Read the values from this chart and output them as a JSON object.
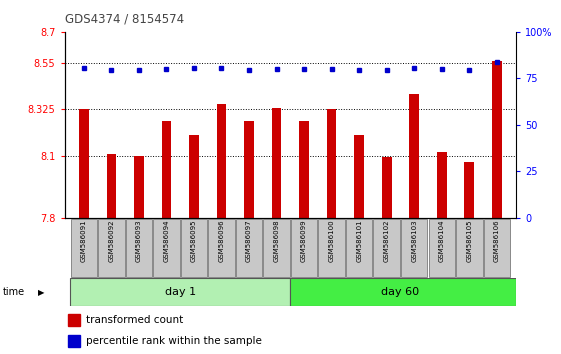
{
  "title": "GDS4374 / 8154574",
  "samples": [
    "GSM586091",
    "GSM586092",
    "GSM586093",
    "GSM586094",
    "GSM586095",
    "GSM586096",
    "GSM586097",
    "GSM586098",
    "GSM586099",
    "GSM586100",
    "GSM586101",
    "GSM586102",
    "GSM586103",
    "GSM586104",
    "GSM586105",
    "GSM586106"
  ],
  "bar_values": [
    8.325,
    8.11,
    8.1,
    8.27,
    8.2,
    8.35,
    8.27,
    8.33,
    8.27,
    8.325,
    8.2,
    8.095,
    8.4,
    8.12,
    8.07,
    8.56
  ],
  "dot_values": [
    8.524,
    8.515,
    8.516,
    8.518,
    8.524,
    8.524,
    8.516,
    8.519,
    8.519,
    8.519,
    8.516,
    8.513,
    8.524,
    8.519,
    8.513,
    8.556
  ],
  "bar_color": "#cc0000",
  "dot_color": "#0000cc",
  "ylim_left": [
    7.8,
    8.7
  ],
  "ylim_right": [
    0,
    100
  ],
  "yticks_left": [
    7.8,
    8.1,
    8.325,
    8.55,
    8.7
  ],
  "yticks_right": [
    0,
    25,
    50,
    75,
    100
  ],
  "ytick_labels_left": [
    "7.8",
    "8.1",
    "8.325",
    "8.55",
    "8.7"
  ],
  "ytick_labels_right": [
    "0",
    "25",
    "50",
    "75",
    "100%"
  ],
  "hlines": [
    8.1,
    8.325,
    8.55
  ],
  "day1_samples": 8,
  "day60_samples": 8,
  "day1_label": "day 1",
  "day60_label": "day 60",
  "time_label": "time",
  "legend_bar_label": "transformed count",
  "legend_dot_label": "percentile rank within the sample",
  "bg_color": "#ffffff",
  "sample_box_color": "#c8c8c8",
  "day1_color": "#b2f0b2",
  "day60_color": "#44ee44",
  "title_color": "#333333",
  "bar_width": 0.35
}
